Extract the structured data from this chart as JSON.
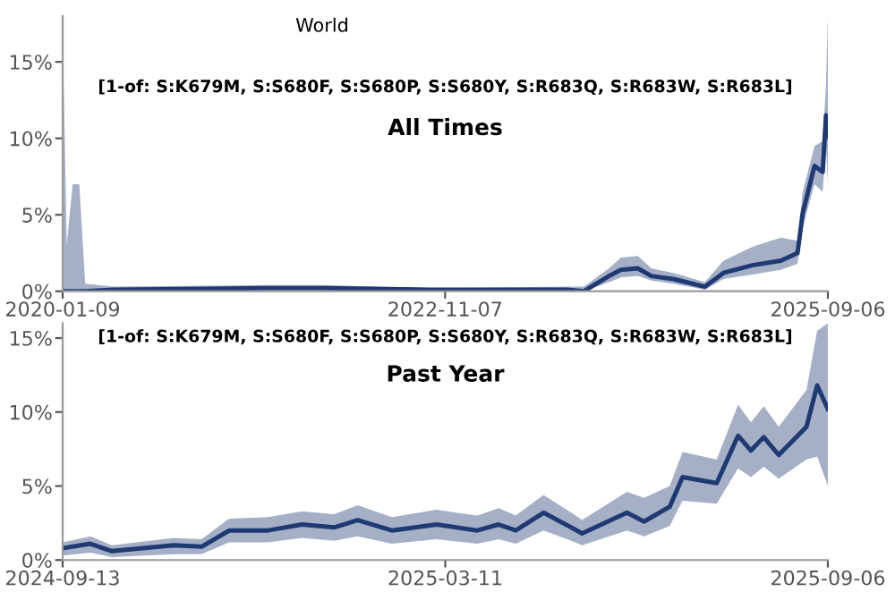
{
  "chart_data": [
    {
      "type": "line",
      "title": "[1-of: S:K679M, S:S680F, S:S680P, S:S680Y, S:R683Q, S:R683W, S:R683L]",
      "subtitle": "All Times",
      "annotations": [
        "World"
      ],
      "x": [
        "2020-01-09",
        "2020-01-20",
        "2020-02-05",
        "2020-02-23",
        "2020-03-10",
        "2020-05-24",
        "2021-07-07",
        "2021-12-13",
        "2022-10-04",
        "2023-10-03",
        "2023-11-17",
        "2024-01-24",
        "2024-02-25",
        "2024-04-11",
        "2024-05-17",
        "2024-07-15",
        "2024-10-09",
        "2024-11-28",
        "2025-02-14",
        "2025-05-02",
        "2025-06-16",
        "2025-06-30",
        "2025-08-01",
        "2025-08-23",
        "2025-09-01",
        "2025-09-06"
      ],
      "series": [
        {
          "color": "#1f3a73",
          "values": [
            0,
            0,
            0,
            0,
            0,
            0.1,
            0.2,
            0.2,
            0.1,
            0.1,
            0,
            1.0,
            1.4,
            1.5,
            1.0,
            0.8,
            0.3,
            1.2,
            1.7,
            2.0,
            2.5,
            5.1,
            8.2,
            7.8,
            11.5,
            10.1
          ],
          "lower": [
            0,
            0,
            0,
            0,
            0,
            0,
            0.1,
            0.1,
            0,
            0,
            0,
            0.6,
            0.9,
            1.0,
            0.7,
            0.5,
            0.1,
            0.8,
            1.1,
            1.4,
            1.8,
            4.2,
            7.0,
            6.5,
            9.5,
            7
          ],
          "upper": [
            17.5,
            3,
            7,
            7,
            0.5,
            0.3,
            0.4,
            0.4,
            0.2,
            0.3,
            0.3,
            1.5,
            2.2,
            2.3,
            1.5,
            1.2,
            0.6,
            2.0,
            2.9,
            3.5,
            3.3,
            6.5,
            9.5,
            9.8,
            13.5,
            18
          ]
        }
      ],
      "xlim": [
        "2020-01-09",
        "2025-09-06"
      ],
      "xticks": [
        "2020-01-09",
        "2022-11-07",
        "2025-09-06"
      ],
      "ylim": [
        0,
        18
      ],
      "yticks": [
        {
          "value": 0,
          "label": "0%"
        },
        {
          "value": 5,
          "label": "5%"
        },
        {
          "value": 10,
          "label": "10%"
        },
        {
          "value": 15,
          "label": "15%"
        }
      ],
      "grid": false,
      "legend": false
    },
    {
      "type": "line",
      "title": "[1-of: S:K679M, S:S680F, S:S680P, S:S680Y, S:R683Q, S:R683W, S:R683L]",
      "subtitle": "Past Year",
      "x": [
        "2024-09-13",
        "2024-09-26",
        "2024-10-06",
        "2024-11-04",
        "2024-11-17",
        "2024-11-30",
        "2024-12-18",
        "2025-01-03",
        "2025-01-18",
        "2025-01-29",
        "2025-02-14",
        "2025-03-07",
        "2025-03-26",
        "2025-04-05",
        "2025-04-13",
        "2025-04-26",
        "2025-05-09",
        "2025-05-14",
        "2025-06-04",
        "2025-06-12",
        "2025-06-24",
        "2025-06-30",
        "2025-07-16",
        "2025-07-26",
        "2025-08-01",
        "2025-08-07",
        "2025-08-14",
        "2025-08-27",
        "2025-09-01",
        "2025-09-06"
      ],
      "series": [
        {
          "color": "#1f3a73",
          "values": [
            0.8,
            1.1,
            0.6,
            1.0,
            0.9,
            2.0,
            2.0,
            2.4,
            2.2,
            2.7,
            2.0,
            2.4,
            2.0,
            2.4,
            2.0,
            3.2,
            2.2,
            1.8,
            3.2,
            2.6,
            3.6,
            5.6,
            5.2,
            8.4,
            7.4,
            8.3,
            7.1,
            9.0,
            11.8,
            10.2
          ],
          "lower": [
            0.3,
            0.5,
            0.2,
            0.4,
            0.4,
            1.2,
            1.2,
            1.5,
            1.3,
            1.6,
            1.1,
            1.4,
            1.1,
            1.4,
            1.1,
            2.0,
            1.3,
            1.0,
            2.0,
            1.6,
            2.3,
            4.0,
            3.8,
            6.2,
            5.6,
            6.3,
            5.5,
            6.8,
            7.0,
            5.0
          ],
          "upper": [
            1.2,
            1.6,
            1.0,
            1.5,
            1.4,
            2.8,
            2.9,
            3.3,
            3.1,
            3.7,
            2.9,
            3.4,
            3.0,
            3.5,
            3.0,
            4.4,
            3.2,
            2.7,
            4.6,
            4.2,
            5.0,
            7.3,
            6.8,
            10.5,
            9.3,
            10.4,
            9.0,
            11.5,
            15.5,
            16
          ]
        }
      ],
      "xlim": [
        "2024-09-13",
        "2025-09-06"
      ],
      "xticks": [
        "2024-09-13",
        "2025-03-11",
        "2025-09-06"
      ],
      "ylim": [
        0,
        16
      ],
      "yticks": [
        {
          "value": 0,
          "label": "0%"
        },
        {
          "value": 5,
          "label": "5%"
        },
        {
          "value": 10,
          "label": "10%"
        },
        {
          "value": 15,
          "label": "15%"
        }
      ],
      "grid": false,
      "legend": false
    }
  ]
}
